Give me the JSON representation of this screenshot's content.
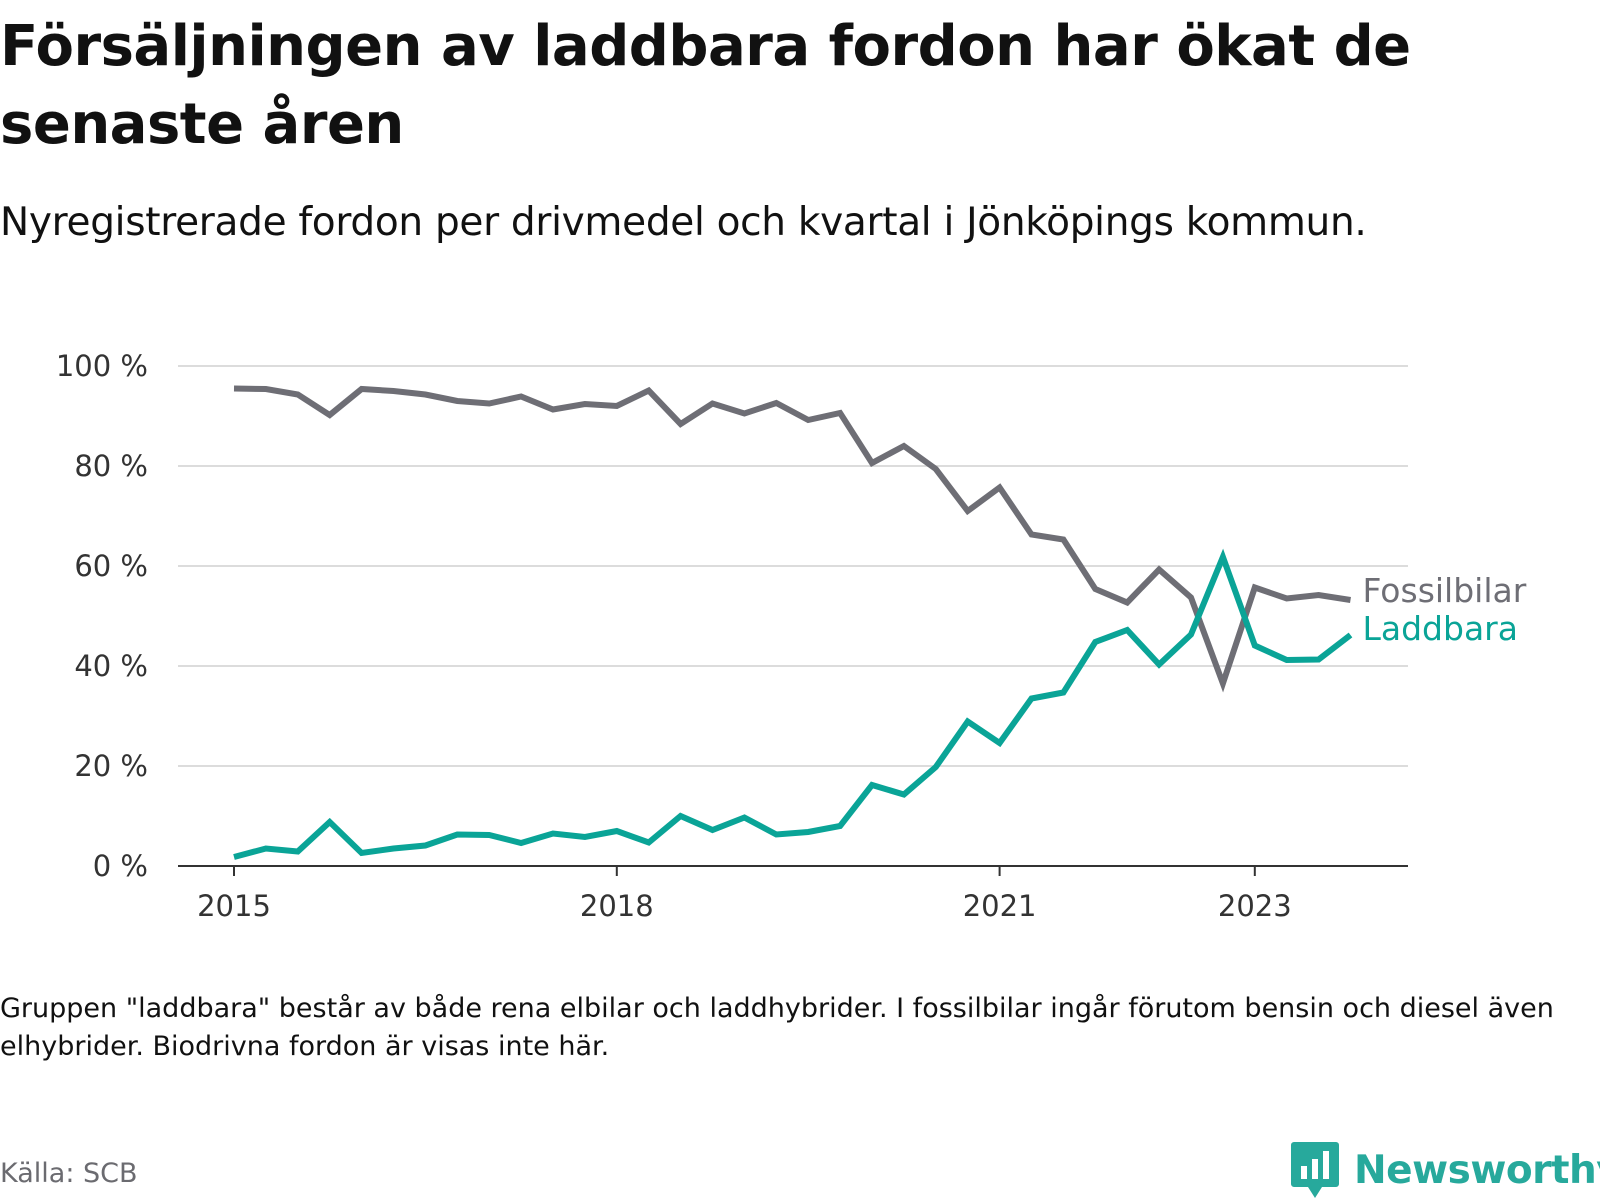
{
  "title": "Försäljningen av laddbara fordon har ökat de senaste åren",
  "subtitle": "Nyregistrerade fordon per drivmedel och kvartal i Jönköpings kommun.",
  "note": "Gruppen \"laddbara\" består av både rena elbilar och laddhybrider. I fossilbilar ingår förutom bensin och diesel även elhybrider. Biodrivna fordon är visas inte här.",
  "source": "Källa: SCB",
  "brand": {
    "name": "Newsworthy",
    "icon": "newsworthy-logo-icon",
    "color": "#27a99c"
  },
  "chart_data": {
    "type": "line",
    "title": "",
    "xlabel": "",
    "ylabel": "",
    "ylim": [
      0,
      100
    ],
    "y_ticks": [
      0,
      20,
      40,
      60,
      80,
      100
    ],
    "y_tick_labels": [
      "0 %",
      "20 %",
      "40 %",
      "60 %",
      "80 %",
      "100 %"
    ],
    "x_tick_years": [
      2015,
      2018,
      2021,
      2023
    ],
    "x_tick_labels": [
      "2015",
      "2018",
      "2021",
      "2023"
    ],
    "grid": true,
    "x": [
      "2015Q1",
      "2015Q2",
      "2015Q3",
      "2015Q4",
      "2016Q1",
      "2016Q2",
      "2016Q3",
      "2016Q4",
      "2017Q1",
      "2017Q2",
      "2017Q3",
      "2017Q4",
      "2018Q1",
      "2018Q2",
      "2018Q3",
      "2018Q4",
      "2019Q1",
      "2019Q2",
      "2019Q3",
      "2019Q4",
      "2020Q1",
      "2020Q2",
      "2020Q3",
      "2020Q4",
      "2021Q1",
      "2021Q2",
      "2021Q3",
      "2021Q4",
      "2022Q1",
      "2022Q2",
      "2022Q3",
      "2022Q4",
      "2023Q1",
      "2023Q2",
      "2023Q3",
      "2023Q4"
    ],
    "series": [
      {
        "name": "Fossilbilar",
        "color": "#6e6e75",
        "values": [
          95.5,
          95.4,
          94.3,
          90.2,
          95.4,
          95.0,
          94.3,
          93.0,
          92.5,
          93.9,
          91.3,
          92.4,
          92.0,
          95.1,
          88.4,
          92.5,
          90.5,
          92.6,
          89.2,
          90.6,
          80.6,
          84.0,
          79.4,
          71.0,
          75.7,
          66.3,
          65.3,
          55.4,
          52.7,
          59.3,
          53.7,
          36.5,
          55.7,
          53.5,
          54.2,
          53.2
        ]
      },
      {
        "name": "Laddbara",
        "color": "#0aa497",
        "values": [
          1.8,
          3.5,
          2.9,
          8.8,
          2.6,
          3.5,
          4.1,
          6.3,
          6.2,
          4.6,
          6.5,
          5.8,
          7.0,
          4.7,
          10.0,
          7.2,
          9.7,
          6.3,
          6.8,
          8.0,
          16.2,
          14.3,
          19.8,
          28.9,
          24.6,
          33.5,
          34.7,
          44.8,
          47.2,
          40.3,
          46.3,
          61.8,
          44.1,
          41.2,
          41.3,
          46.2
        ]
      }
    ]
  }
}
